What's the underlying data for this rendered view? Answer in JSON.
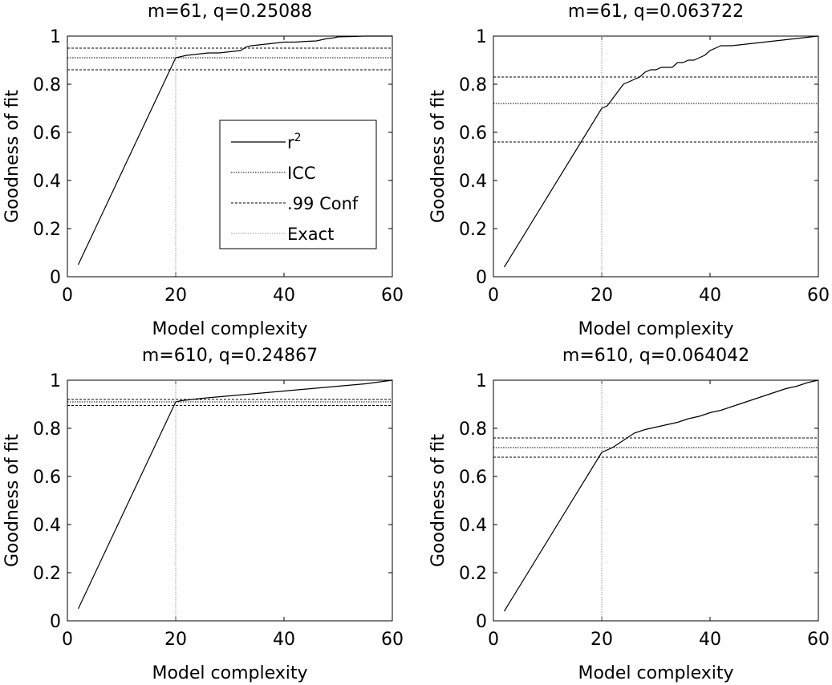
{
  "chart_data": [
    {
      "type": "line",
      "title": "m=61, q=0.25088",
      "xlabel": "Model complexity",
      "ylabel": "Goodness of fit",
      "xlim": [
        0,
        60
      ],
      "ylim": [
        0,
        1
      ],
      "xticks": [
        "0",
        "20",
        "40",
        "60"
      ],
      "yticks": [
        "0",
        "0.2",
        "0.4",
        "0.6",
        "0.8",
        "1"
      ],
      "legend": {
        "show": true,
        "placement": "center-right",
        "entries": [
          {
            "label": "r",
            "sup": "2",
            "style": "solid"
          },
          {
            "label": "ICC",
            "style": "dotted"
          },
          {
            "label": ".99 Conf",
            "style": "dashed"
          },
          {
            "label": "Exact",
            "style": "dotted-light"
          }
        ]
      },
      "series": [
        {
          "style": "solid",
          "x": [
            2,
            20,
            22,
            24,
            26,
            28,
            30,
            32,
            33,
            34,
            36,
            38,
            40,
            42,
            44,
            46,
            47,
            48,
            49,
            50,
            52,
            55,
            58,
            60
          ],
          "y": [
            0.05,
            0.91,
            0.92,
            0.925,
            0.93,
            0.93,
            0.935,
            0.94,
            0.955,
            0.96,
            0.965,
            0.97,
            0.975,
            0.975,
            0.978,
            0.98,
            0.985,
            0.99,
            0.992,
            0.997,
            0.998,
            1.0,
            1.0,
            1.0
          ]
        }
      ],
      "icc": 0.91,
      "conf": [
        0.86,
        0.95
      ],
      "exact_x": 20
    },
    {
      "type": "line",
      "title": "m=61, q=0.063722",
      "xlabel": "Model complexity",
      "ylabel": "Goodness of fit",
      "xlim": [
        0,
        60
      ],
      "ylim": [
        0,
        1
      ],
      "xticks": [
        "0",
        "20",
        "40",
        "60"
      ],
      "yticks": [
        "0",
        "0.2",
        "0.4",
        "0.6",
        "0.8",
        "1"
      ],
      "series": [
        {
          "style": "solid",
          "x": [
            2,
            20,
            21,
            22,
            23,
            24,
            25,
            26,
            27,
            28,
            29,
            30,
            31,
            32,
            33,
            34,
            35,
            36,
            37,
            38,
            39,
            40,
            41,
            42,
            44,
            46,
            48,
            50,
            52,
            54,
            56,
            58,
            60
          ],
          "y": [
            0.04,
            0.7,
            0.71,
            0.74,
            0.77,
            0.8,
            0.81,
            0.82,
            0.83,
            0.85,
            0.86,
            0.86,
            0.87,
            0.87,
            0.87,
            0.89,
            0.89,
            0.9,
            0.9,
            0.91,
            0.92,
            0.94,
            0.95,
            0.96,
            0.96,
            0.965,
            0.97,
            0.975,
            0.98,
            0.985,
            0.99,
            0.995,
            1.0
          ]
        }
      ],
      "icc": 0.72,
      "conf": [
        0.56,
        0.83
      ],
      "exact_x": 20
    },
    {
      "type": "line",
      "title": "m=610, q=0.24867",
      "xlabel": "Model complexity",
      "ylabel": "Goodness of fit",
      "xlim": [
        0,
        60
      ],
      "ylim": [
        0,
        1
      ],
      "xticks": [
        "0",
        "20",
        "40",
        "60"
      ],
      "yticks": [
        "0",
        "0.2",
        "0.4",
        "0.6",
        "0.8",
        "1"
      ],
      "series": [
        {
          "style": "solid",
          "x": [
            2,
            20,
            21,
            25,
            30,
            35,
            40,
            45,
            50,
            55,
            60
          ],
          "y": [
            0.05,
            0.91,
            0.915,
            0.925,
            0.935,
            0.945,
            0.955,
            0.965,
            0.975,
            0.985,
            1.0
          ]
        }
      ],
      "icc": 0.91,
      "conf": [
        0.895,
        0.92
      ],
      "exact_x": 20
    },
    {
      "type": "line",
      "title": "m=610, q=0.064042",
      "xlabel": "Model complexity",
      "ylabel": "Goodness of fit",
      "xlim": [
        0,
        60
      ],
      "ylim": [
        0,
        1
      ],
      "xticks": [
        "0",
        "20",
        "40",
        "60"
      ],
      "yticks": [
        "0",
        "0.2",
        "0.4",
        "0.6",
        "0.8",
        "1"
      ],
      "series": [
        {
          "style": "solid",
          "x": [
            2,
            20,
            22,
            24,
            26,
            28,
            30,
            32,
            34,
            36,
            38,
            40,
            42,
            44,
            46,
            48,
            50,
            52,
            54,
            56,
            58,
            60
          ],
          "y": [
            0.04,
            0.7,
            0.72,
            0.75,
            0.78,
            0.795,
            0.805,
            0.815,
            0.825,
            0.84,
            0.85,
            0.865,
            0.875,
            0.89,
            0.905,
            0.92,
            0.935,
            0.95,
            0.965,
            0.975,
            0.99,
            1.0
          ]
        }
      ],
      "icc": 0.72,
      "conf": [
        0.68,
        0.76
      ],
      "exact_x": 20
    }
  ]
}
